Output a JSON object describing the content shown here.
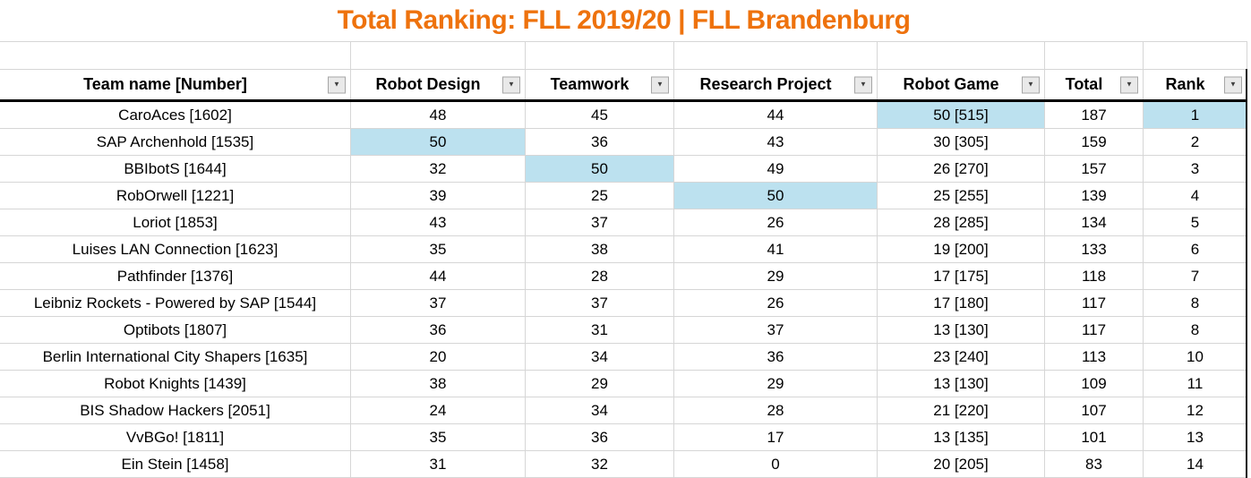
{
  "title": "Total Ranking: FLL 2019/20 | FLL Brandenburg",
  "colors": {
    "title_orange": "#EE720D",
    "highlight_blue": "#BCE1EF",
    "gridline_gray": "#d6d6d6"
  },
  "icons": {
    "filter_dropdown": "▼"
  },
  "table": {
    "columns": [
      {
        "label": "Team name [Number]"
      },
      {
        "label": "Robot Design"
      },
      {
        "label": "Teamwork"
      },
      {
        "label": "Research Project"
      },
      {
        "label": "Robot Game"
      },
      {
        "label": "Total"
      },
      {
        "label": "Rank"
      }
    ],
    "rows": [
      {
        "cells": [
          "CaroAces [1602]",
          "48",
          "45",
          "44",
          "50 [515]",
          "187",
          "1"
        ],
        "highlighted_columns": [
          4,
          6
        ]
      },
      {
        "cells": [
          "SAP Archenhold [1535]",
          "50",
          "36",
          "43",
          "30 [305]",
          "159",
          "2"
        ],
        "highlighted_columns": [
          1
        ]
      },
      {
        "cells": [
          "BBIbotS [1644]",
          "32",
          "50",
          "49",
          "26 [270]",
          "157",
          "3"
        ],
        "highlighted_columns": [
          2
        ]
      },
      {
        "cells": [
          "RobOrwell [1221]",
          "39",
          "25",
          "50",
          "25 [255]",
          "139",
          "4"
        ],
        "highlighted_columns": [
          3
        ]
      },
      {
        "cells": [
          "Loriot [1853]",
          "43",
          "37",
          "26",
          "28 [285]",
          "134",
          "5"
        ],
        "highlighted_columns": []
      },
      {
        "cells": [
          "Luises LAN Connection [1623]",
          "35",
          "38",
          "41",
          "19 [200]",
          "133",
          "6"
        ],
        "highlighted_columns": []
      },
      {
        "cells": [
          "Pathfinder [1376]",
          "44",
          "28",
          "29",
          "17 [175]",
          "118",
          "7"
        ],
        "highlighted_columns": []
      },
      {
        "cells": [
          "Leibniz Rockets - Powered by SAP [1544]",
          "37",
          "37",
          "26",
          "17 [180]",
          "117",
          "8"
        ],
        "highlighted_columns": []
      },
      {
        "cells": [
          "Optibots [1807]",
          "36",
          "31",
          "37",
          "13 [130]",
          "117",
          "8"
        ],
        "highlighted_columns": []
      },
      {
        "cells": [
          "Berlin International City Shapers [1635]",
          "20",
          "34",
          "36",
          "23 [240]",
          "113",
          "10"
        ],
        "highlighted_columns": []
      },
      {
        "cells": [
          "Robot Knights [1439]",
          "38",
          "29",
          "29",
          "13 [130]",
          "109",
          "11"
        ],
        "highlighted_columns": []
      },
      {
        "cells": [
          "BIS Shadow Hackers [2051]",
          "24",
          "34",
          "28",
          "21 [220]",
          "107",
          "12"
        ],
        "highlighted_columns": []
      },
      {
        "cells": [
          "VvBGo! [1811]",
          "35",
          "36",
          "17",
          "13 [135]",
          "101",
          "13"
        ],
        "highlighted_columns": []
      },
      {
        "cells": [
          "Ein Stein [1458]",
          "31",
          "32",
          "0",
          "20 [205]",
          "83",
          "14"
        ],
        "highlighted_columns": []
      }
    ]
  }
}
